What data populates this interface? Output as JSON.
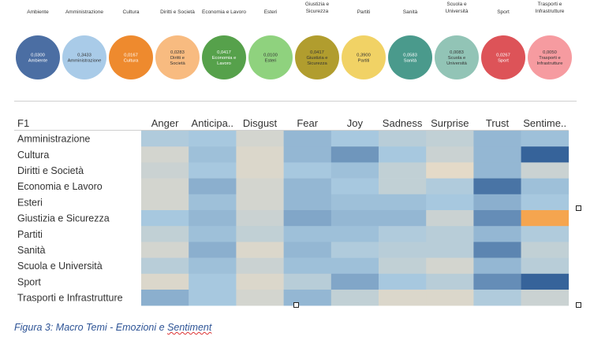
{
  "bubbles": {
    "topics": [
      {
        "label_lines": [
          "Ambiente"
        ],
        "value": "0,0300",
        "name": "Ambiente",
        "color": "#4b6ea3",
        "dark_text": false
      },
      {
        "label_lines": [
          "Amministrazione"
        ],
        "value": "0,3433",
        "name": "Amministrazione",
        "color": "#a9cbe8",
        "dark_text": true
      },
      {
        "label_lines": [
          "Cultura"
        ],
        "value": "0,0167",
        "name": "Cultura",
        "color": "#ee8a2e",
        "dark_text": false
      },
      {
        "label_lines": [
          "Diritti e Società"
        ],
        "value": "0,0283",
        "name": "Diritti e Società",
        "color": "#f8bb80",
        "dark_text": true
      },
      {
        "label_lines": [
          "Economia e Lavoro"
        ],
        "value": "0,0417",
        "name": "Economia e Lavoro",
        "color": "#56a14b",
        "dark_text": false
      },
      {
        "label_lines": [
          "Esteri"
        ],
        "value": "0,0100",
        "name": "Esteri",
        "color": "#8fd27e",
        "dark_text": true
      },
      {
        "label_lines": [
          "Giustizia e",
          "Sicurezza"
        ],
        "value": "0,0417",
        "name": "Giustizia e Sicurezza",
        "color": "#b19d2e",
        "dark_text": true
      },
      {
        "label_lines": [
          "Partiti"
        ],
        "value": "0,3900",
        "name": "Partiti",
        "color": "#f1d265",
        "dark_text": true
      },
      {
        "label_lines": [
          "Sanità"
        ],
        "value": "0,0583",
        "name": "Sanità",
        "color": "#4a9a8c",
        "dark_text": false
      },
      {
        "label_lines": [
          "Scuola e",
          "Università"
        ],
        "value": "0,0083",
        "name": "Scuola e Università",
        "color": "#92c4b6",
        "dark_text": true
      },
      {
        "label_lines": [
          "Sport"
        ],
        "value": "0,0267",
        "name": "Sport",
        "color": "#dd5358",
        "dark_text": false
      },
      {
        "label_lines": [
          "Trasporti e",
          "Infrastrutture"
        ],
        "value": "0,0050",
        "name": "Trasporti e Infrastrutture",
        "color": "#f69ba0",
        "dark_text": true
      }
    ]
  },
  "chart_data": {
    "type": "heatmap",
    "row_header": "F1",
    "columns": [
      "Anger",
      "Anticipa..",
      "Disgust",
      "Fear",
      "Joy",
      "Sadness",
      "Surprise",
      "Trust",
      "Sentime.."
    ],
    "rows": [
      "Amministrazione",
      "Cultura",
      "Diritti e Società",
      "Economia e Lavoro",
      "Esteri",
      "Giustizia e Sicurezza",
      "Partiti",
      "Sanità",
      "Scuola e Università",
      "Sport",
      "Trasporti e Infrastrutture"
    ],
    "color_scale": {
      "low": "#e4dac8",
      "mid": "#a7c8df",
      "high": "#2d5b94",
      "highlight": "#f5a54f"
    },
    "intensity": [
      [
        0.3,
        0.35,
        0.1,
        0.45,
        0.35,
        0.25,
        0.2,
        0.45,
        0.4
      ],
      [
        0.1,
        0.4,
        0.05,
        0.45,
        0.65,
        0.35,
        0.15,
        0.45,
        0.95
      ],
      [
        0.15,
        0.35,
        0.05,
        0.35,
        0.4,
        0.2,
        0.0,
        0.45,
        0.15
      ],
      [
        0.1,
        0.5,
        0.1,
        0.45,
        0.35,
        0.2,
        0.3,
        0.85,
        0.4
      ],
      [
        0.1,
        0.4,
        0.1,
        0.45,
        0.4,
        0.4,
        0.35,
        0.5,
        0.35
      ],
      [
        0.35,
        0.45,
        0.15,
        0.55,
        0.45,
        0.45,
        0.15,
        0.7,
        -1
      ],
      [
        0.2,
        0.4,
        0.2,
        0.4,
        0.4,
        0.3,
        0.25,
        0.45,
        0.3
      ],
      [
        0.1,
        0.5,
        0.05,
        0.45,
        0.3,
        0.25,
        0.25,
        0.75,
        0.2
      ],
      [
        0.25,
        0.4,
        0.15,
        0.4,
        0.4,
        0.2,
        0.1,
        0.45,
        0.25
      ],
      [
        0.05,
        0.35,
        0.05,
        0.25,
        0.55,
        0.35,
        0.25,
        0.7,
        0.95
      ],
      [
        0.5,
        0.35,
        0.1,
        0.45,
        0.2,
        0.05,
        0.05,
        0.3,
        0.15
      ]
    ]
  },
  "caption": {
    "prefix": "Figura 3: Macro Temi - Emozioni e ",
    "last_word": "Sentiment"
  }
}
